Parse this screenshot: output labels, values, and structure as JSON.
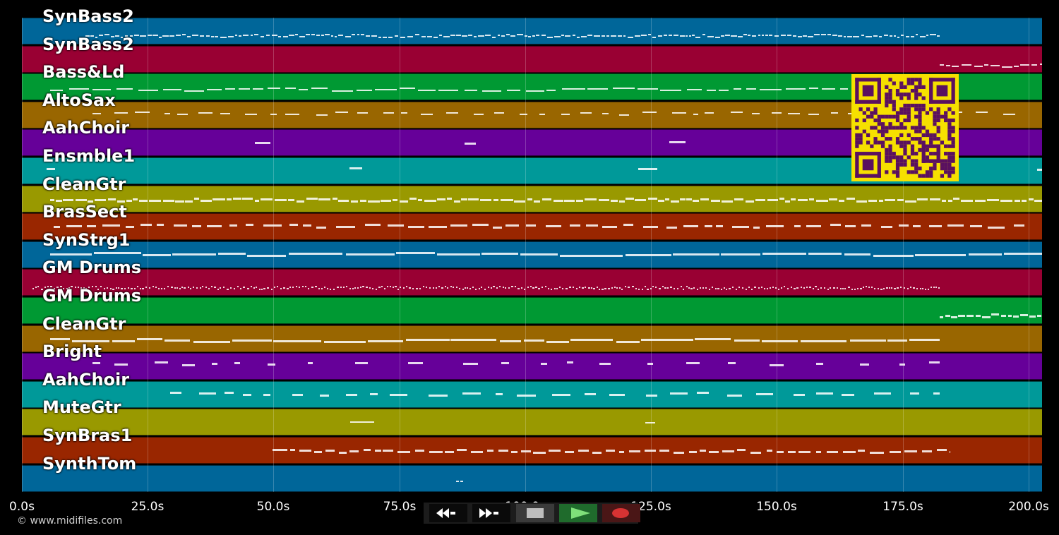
{
  "tracks": [
    {
      "label": "SynBass2",
      "color": "#006699"
    },
    {
      "label": "SynBass2",
      "color": "#990033"
    },
    {
      "label": "Bass&Ld",
      "color": "#009933"
    },
    {
      "label": "AltoSax",
      "color": "#996600"
    },
    {
      "label": "AahChoir",
      "color": "#660099"
    },
    {
      "label": "Ensmble1",
      "color": "#009999"
    },
    {
      "label": "CleanGtr",
      "color": "#999900"
    },
    {
      "label": "BrasSect",
      "color": "#992600"
    },
    {
      "label": "SynStrg1",
      "color": "#006699"
    },
    {
      "label": "GM Drums",
      "color": "#990033"
    },
    {
      "label": "GM Drums",
      "color": "#009933"
    },
    {
      "label": "CleanGtr",
      "color": "#996600"
    },
    {
      "label": "Bright",
      "color": "#660099"
    },
    {
      "label": "AahChoir",
      "color": "#009999"
    },
    {
      "label": "MuteGtr",
      "color": "#999900"
    },
    {
      "label": "SynBras1",
      "color": "#992600"
    },
    {
      "label": "SynthTom",
      "color": "#006699"
    }
  ],
  "timeline": {
    "ticks": [
      "0.0s",
      "25.0s",
      "50.0s",
      "75.0s",
      "100.0s",
      "125.0s",
      "150.0s",
      "175.0s",
      "200.0s"
    ]
  },
  "copyright": "© www.midifiles.com",
  "transport": [
    {
      "name": "rewind-button",
      "icon": "rewind-icon"
    },
    {
      "name": "fast-forward-button",
      "icon": "fast-forward-icon"
    },
    {
      "name": "stop-button",
      "icon": "stop-icon"
    },
    {
      "name": "play-button",
      "icon": "play-icon"
    },
    {
      "name": "record-button",
      "icon": "record-icon"
    }
  ],
  "qr_code": {
    "icon": "qr-code-icon",
    "color": "#f6e000",
    "ink": "#5a1060"
  }
}
